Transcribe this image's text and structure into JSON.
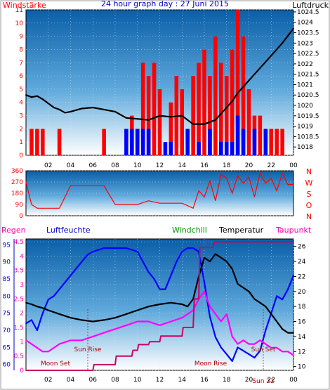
{
  "title": "24 hour graph day : 27 Juni 2015",
  "colors": {
    "frame": "#000000",
    "bg_top": "#0a5fa8",
    "bg_bottom": "#ffffff",
    "wind": "#ff0000",
    "gust": "#0000ff",
    "pressure": "#000000",
    "direction": "#ff0000",
    "rain": "#ff00aa",
    "humidity": "#0000ff",
    "windchill": "#ff00ff",
    "temperature": "#000000",
    "dewpoint": "#cc0066",
    "grid": "#cfe6f6"
  },
  "chart_data": [
    {
      "type": "bar",
      "left_label": "Windstärke",
      "right_label": "Luftdruck",
      "x_ticks": [
        "02",
        "04",
        "06",
        "08",
        "10",
        "12",
        "14",
        "16",
        "18",
        "20",
        "22",
        "00"
      ],
      "left_ticks": [
        "0",
        "1",
        "2",
        "3",
        "4",
        "5",
        "6",
        "7",
        "8",
        "9",
        "10",
        "11"
      ],
      "right_ticks": [
        "1018",
        "1018.5",
        "1019",
        "1019.5",
        "1020",
        "1020.5",
        "1021",
        "1021.5",
        "1022",
        "1022.5",
        "1023",
        "1023.5",
        "1024",
        "1024.5"
      ],
      "ylim_left": [
        0,
        11
      ],
      "ylim_right": [
        1017.6,
        1024.6
      ],
      "series": [
        {
          "name": "",
          "kind": "bars",
          "x": [
            0.5,
            1.0,
            1.5,
            3.0,
            7.0,
            9.5,
            10.0,
            10.5,
            11.0,
            11.5,
            12.0,
            13.0,
            13.5,
            14.0,
            15.0,
            15.5,
            16.0,
            16.5,
            17.0,
            17.5,
            18.0,
            18.5,
            19.0,
            19.5,
            20.0,
            20.5,
            21.0,
            22.0,
            22.5,
            23.0
          ],
          "y": [
            2,
            2,
            2,
            2,
            2,
            3,
            2,
            7,
            6,
            7,
            5,
            4,
            6,
            5,
            6,
            7,
            8,
            6,
            9,
            7,
            6,
            8,
            11,
            9,
            5,
            3,
            3,
            2,
            2,
            2
          ]
        },
        {
          "name": "",
          "kind": "bars",
          "x": [
            9.0,
            9.5,
            10.0,
            10.5,
            11.0,
            12.5,
            13.0,
            14.5,
            15.5,
            16.5,
            17.5,
            18.0,
            18.5,
            19.0,
            19.5,
            20.5,
            21.5
          ],
          "y": [
            2,
            2,
            2,
            2,
            2,
            1,
            1,
            2,
            1,
            2,
            1,
            1,
            1,
            3,
            2,
            2,
            2
          ]
        },
        {
          "name": "",
          "kind": "line",
          "x": [
            0,
            0.5,
            1,
            1.5,
            2,
            2.5,
            3,
            3.5,
            4,
            5,
            6,
            7,
            8,
            9,
            10,
            11,
            12,
            13,
            14,
            14.5,
            15,
            15.5,
            16,
            16.5,
            17,
            17.5,
            18,
            18.5,
            19,
            19.5,
            20,
            20.5,
            21,
            22,
            23,
            24
          ],
          "y": [
            1020.5,
            1020.4,
            1020.45,
            1020.3,
            1020.1,
            1019.9,
            1019.8,
            1019.65,
            1019.7,
            1019.85,
            1019.9,
            1019.8,
            1019.7,
            1019.4,
            1019.35,
            1019.3,
            1019.5,
            1019.45,
            1019.5,
            1019.3,
            1019.1,
            1019.1,
            1019.1,
            1019.2,
            1019.3,
            1019.6,
            1019.9,
            1020.2,
            1020.6,
            1020.9,
            1021.2,
            1021.5,
            1021.8,
            1022.4,
            1023.0,
            1023.7
          ]
        }
      ]
    },
    {
      "type": "line",
      "right_labels": [
        "N",
        "W",
        "S",
        "O",
        "N"
      ],
      "left_ticks": [
        "0",
        "90",
        "180",
        "270",
        "360"
      ],
      "ylim": [
        0,
        360
      ],
      "series": [
        {
          "name": "",
          "x": [
            0,
            0.5,
            1,
            1.5,
            2,
            3,
            4,
            5,
            6,
            7,
            8,
            9,
            10,
            11,
            12,
            13,
            14,
            15,
            15.5,
            16,
            16.5,
            17,
            17.5,
            18,
            18.5,
            19,
            19.5,
            20,
            20.5,
            21,
            21.5,
            22,
            22.5,
            23,
            23.5,
            24
          ],
          "y": [
            270,
            90,
            60,
            60,
            60,
            60,
            240,
            240,
            240,
            240,
            90,
            90,
            90,
            120,
            100,
            100,
            100,
            60,
            200,
            150,
            280,
            120,
            330,
            300,
            180,
            320,
            260,
            310,
            150,
            340,
            260,
            300,
            200,
            340,
            250,
            250
          ]
        }
      ]
    },
    {
      "type": "line",
      "labels": {
        "rain": "Regen",
        "humidity": "Luftfeuchte",
        "windchill": "Windchill",
        "temperature": "Temperatur",
        "dewpoint": "Taupunkt"
      },
      "annotations": [
        "Moon Set",
        "Sun Rise",
        "Moon Rise",
        "Sun Set",
        "Sun 22"
      ],
      "x_ticks": [
        "02",
        "04",
        "06",
        "08",
        "10",
        "12",
        "14",
        "16",
        "18",
        "20",
        "22",
        "00"
      ],
      "ticks_rain": [
        "0",
        "0.5",
        "1",
        "1.5",
        "2",
        "2.5",
        "3",
        "3.5",
        "4",
        "4.5"
      ],
      "ticks_humidity": [
        "60",
        "65",
        "70",
        "75",
        "80",
        "85",
        "90",
        "95"
      ],
      "ticks_temp": [
        "10",
        "12",
        "14",
        "16",
        "18",
        "20",
        "22",
        "24",
        "26"
      ],
      "ylim_rain": [
        0,
        4.6
      ],
      "ylim_humidity": [
        58.3,
        96.7
      ],
      "ylim_temp": [
        9.5,
        27
      ],
      "series": [
        {
          "name": "",
          "axis": "humidity",
          "x": [
            0,
            0.5,
            1,
            1.5,
            2,
            2.5,
            3,
            3.5,
            4,
            4.5,
            5,
            5.5,
            6,
            6.5,
            7,
            8,
            9,
            10,
            10.5,
            11,
            11.5,
            12,
            12.5,
            13,
            13.5,
            14,
            14.5,
            15,
            15.5,
            16,
            16.5,
            17,
            17.5,
            18,
            18.5,
            19,
            19.5,
            20,
            20.5,
            21,
            21.5,
            22,
            22.5,
            23,
            23.5,
            24
          ],
          "y": [
            72,
            73,
            70,
            75,
            79,
            80,
            82,
            84,
            86,
            88,
            90,
            92,
            93,
            93.5,
            94,
            94,
            94,
            93,
            90,
            87,
            85,
            82,
            82,
            86,
            90,
            93,
            94,
            94,
            93,
            84,
            74,
            68,
            65,
            63,
            61,
            65,
            64,
            63,
            62,
            64,
            70,
            75,
            80,
            79,
            82,
            86
          ]
        },
        {
          "name": "",
          "axis": "temp",
          "x": [
            0,
            0.5,
            1,
            1.5,
            2,
            3,
            4,
            5,
            6,
            7,
            8,
            9,
            10,
            11,
            12,
            13,
            14,
            14.5,
            15,
            15.5,
            16,
            16.5,
            17,
            17.5,
            18,
            18.5,
            19,
            19.5,
            20,
            20.5,
            21,
            21.5,
            22,
            22.5,
            23,
            23.5,
            24
          ],
          "y": [
            18.5,
            18.3,
            18,
            17.8,
            17.5,
            17,
            16.5,
            16.2,
            16,
            16.2,
            16.5,
            17,
            17.5,
            18,
            18.3,
            18.5,
            18.3,
            18,
            19,
            22,
            24.5,
            24,
            25,
            24.5,
            24,
            23,
            21,
            20.5,
            20,
            19,
            18.5,
            18,
            17,
            16,
            15,
            14.5,
            14.5
          ]
        },
        {
          "name": "",
          "axis": "temp",
          "x": [
            0,
            0.5,
            1,
            1.5,
            2,
            3,
            4,
            5,
            6,
            7,
            8,
            9,
            10,
            11,
            12,
            13,
            14,
            14.5,
            15,
            15.5,
            16,
            16.5,
            17,
            17.5,
            18,
            18.5,
            19,
            19.5,
            20,
            20.5,
            21,
            21.5,
            22,
            22.5,
            23,
            23.5,
            24
          ],
          "y": [
            13.5,
            13,
            12.5,
            12,
            12,
            13,
            13.5,
            13.5,
            14,
            14.5,
            15,
            15.5,
            16,
            16,
            15.5,
            16,
            16.5,
            17,
            17.5,
            19,
            20,
            18,
            17,
            16,
            17,
            14,
            13,
            13.5,
            13,
            13,
            13.5,
            13,
            12.5,
            12.5,
            12,
            12,
            11.5
          ]
        },
        {
          "name": "",
          "axis": "rain",
          "x": [
            0,
            5,
            5.1,
            6,
            6.1,
            8,
            8.1,
            9.5,
            9.6,
            10,
            10.1,
            11,
            11.1,
            12,
            12.1,
            14,
            14.1,
            15,
            15.1,
            15.5,
            15.6,
            16.8,
            16.9,
            24
          ],
          "y": [
            0,
            0,
            0,
            0,
            0.2,
            0.2,
            0.5,
            0.5,
            0.7,
            0.7,
            0.9,
            0.9,
            1.0,
            1.0,
            1.2,
            1.2,
            1.5,
            1.5,
            2.5,
            2.5,
            4.3,
            4.3,
            4.5,
            4.5
          ]
        }
      ]
    }
  ]
}
